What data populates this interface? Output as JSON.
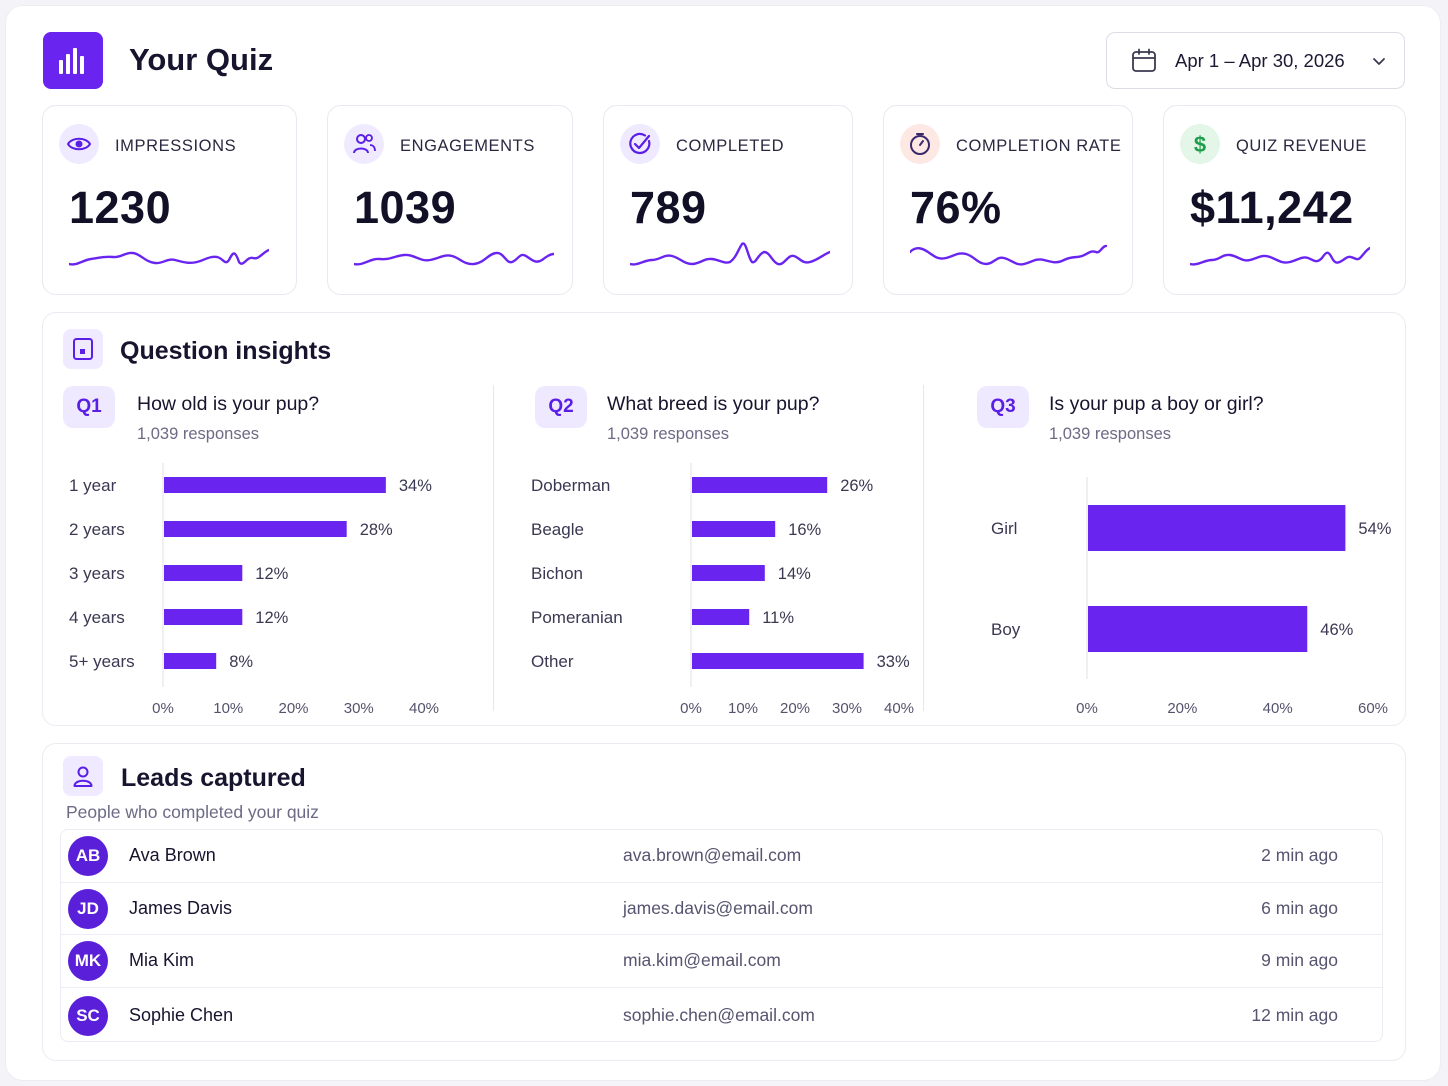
{
  "app": {
    "title": "Your Quiz",
    "logo_icon": "bar-chart-icon"
  },
  "date_range": {
    "label": "Apr 1 – Apr 30, 2026",
    "icon": "calendar-icon"
  },
  "accent_color": "#6a24f0",
  "stats": [
    {
      "label": "IMPRESSIONS",
      "value": "1230",
      "icon": "eye-icon",
      "icon_bg": "#efeaff",
      "icon_color": "#5b1ee6"
    },
    {
      "label": "ENGAGEMENTS",
      "value": "1039",
      "icon": "users-icon",
      "icon_bg": "#efeaff",
      "icon_color": "#5b1ee6"
    },
    {
      "label": "COMPLETED",
      "value": "789",
      "icon": "check-circle-icon",
      "icon_bg": "#efeaff",
      "icon_color": "#5b1ee6"
    },
    {
      "label": "COMPLETION RATE",
      "value": "76%",
      "icon": "stopwatch-icon",
      "icon_bg": "#fde8e4",
      "icon_color": "#3b2a6b"
    },
    {
      "label": "QUIZ REVENUE",
      "value": "$11,242",
      "icon": "dollar-icon",
      "icon_bg": "#e3f6e8",
      "icon_color": "#1f9d4a"
    }
  ],
  "insights": {
    "title": "Question insights",
    "questions": [
      {
        "badge": "Q1",
        "title": "How old is your pup?",
        "responses": "1,039 responses"
      },
      {
        "badge": "Q2",
        "title": "What breed is your pup?",
        "responses": "1,039 responses"
      },
      {
        "badge": "Q3",
        "title": "Is your pup a boy or girl?",
        "responses": "1,039 responses"
      }
    ]
  },
  "chart_data": [
    {
      "type": "bar",
      "orientation": "horizontal",
      "categories": [
        "1 year",
        "2 years",
        "3 years",
        "4 years",
        "5+ years"
      ],
      "values": [
        34,
        28,
        12,
        12,
        8
      ],
      "value_labels": [
        "34%",
        "28%",
        "12%",
        "12%",
        "8%"
      ],
      "xlim": [
        0,
        40
      ],
      "x_ticks": [
        "0%",
        "10%",
        "20%",
        "30%",
        "40%"
      ],
      "bar_color": "#6a24f0"
    },
    {
      "type": "bar",
      "orientation": "horizontal",
      "categories": [
        "Doberman",
        "Beagle",
        "Bichon",
        "Pomeranian",
        "Other"
      ],
      "values": [
        26,
        16,
        14,
        11,
        33
      ],
      "value_labels": [
        "26%",
        "16%",
        "14%",
        "11%",
        "33%"
      ],
      "xlim": [
        0,
        40
      ],
      "x_ticks": [
        "0%",
        "10%",
        "20%",
        "30%",
        "40%"
      ],
      "bar_color": "#6a24f0"
    },
    {
      "type": "bar",
      "orientation": "horizontal",
      "categories": [
        "Girl",
        "Boy"
      ],
      "values": [
        54,
        46
      ],
      "value_labels": [
        "54%",
        "46%"
      ],
      "xlim": [
        0,
        60
      ],
      "x_ticks": [
        "0%",
        "20%",
        "40%",
        "60%"
      ],
      "bar_color": "#6a24f0"
    }
  ],
  "leads": {
    "title": "Leads captured",
    "subtitle": "People who completed your quiz",
    "rows": [
      {
        "initials": "AB",
        "name": "Ava Brown",
        "email": "ava.brown@email.com",
        "time": "2 min ago"
      },
      {
        "initials": "JD",
        "name": "James Davis",
        "email": "james.davis@email.com",
        "time": "6 min ago"
      },
      {
        "initials": "MK",
        "name": "Mia Kim",
        "email": "mia.kim@email.com",
        "time": "9 min ago"
      },
      {
        "initials": "SC",
        "name": "Sophie Chen",
        "email": "sophie.chen@email.com",
        "time": "12 min ago"
      }
    ]
  }
}
